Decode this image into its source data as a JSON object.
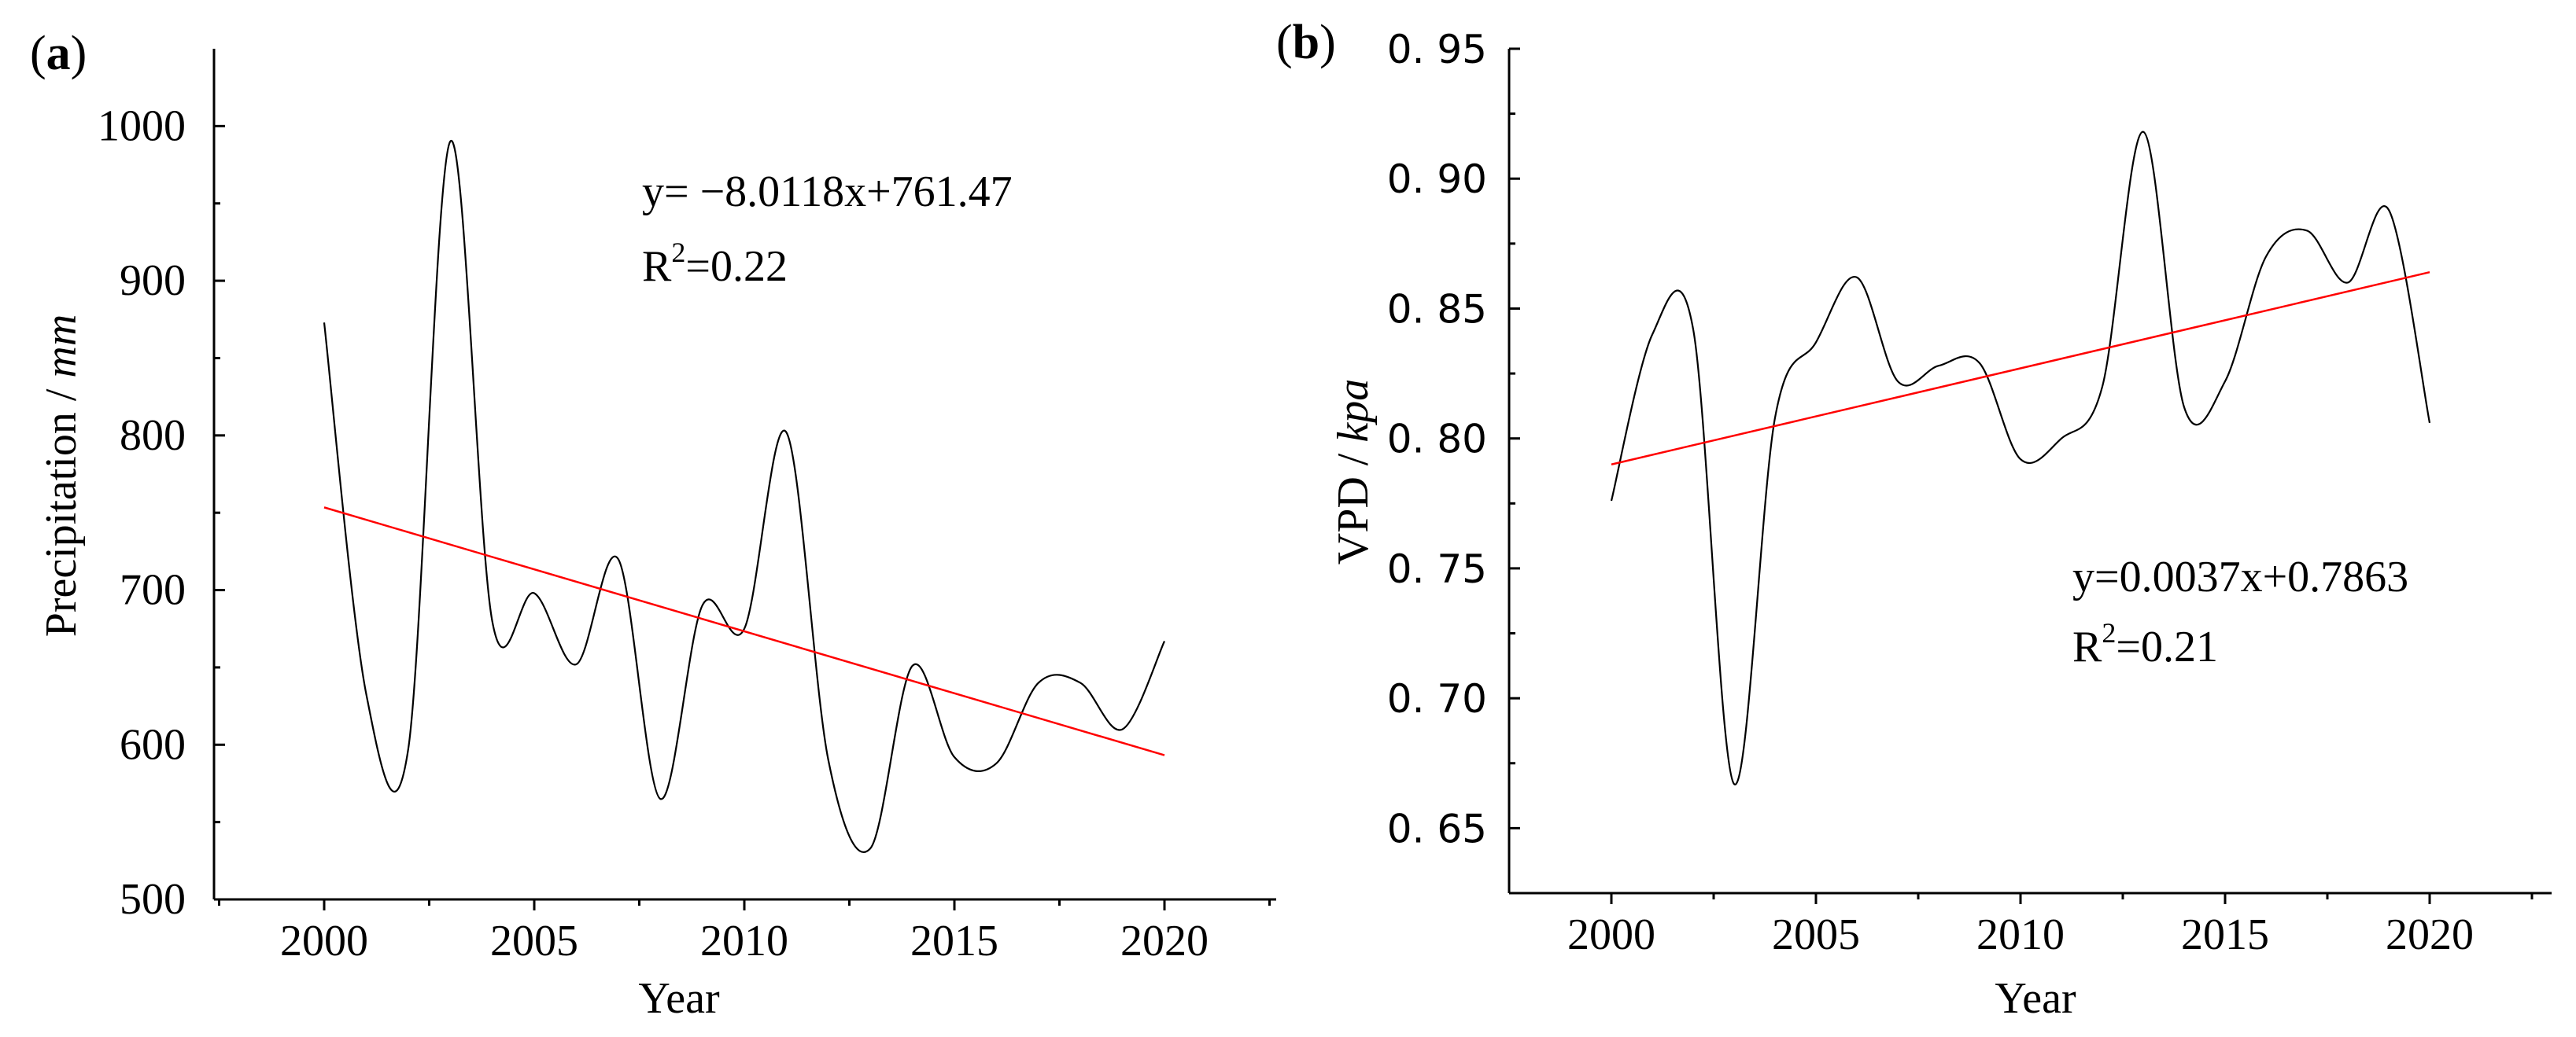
{
  "chart_data": [
    {
      "type": "line",
      "panel_label": "a",
      "title": "",
      "xlabel": "Year",
      "ylabel_main": "Precipitation / ",
      "ylabel_unit": "mm",
      "xlim": [
        1997.5,
        2022.5
      ],
      "ylim": [
        500,
        1050
      ],
      "xticks": [
        2000,
        2005,
        2010,
        2015,
        2020
      ],
      "yticks": [
        500,
        600,
        700,
        800,
        900,
        1000
      ],
      "x": [
        2000,
        2001,
        2002,
        2003,
        2004,
        2005,
        2006,
        2007,
        2008,
        2009,
        2010,
        2011,
        2012,
        2013,
        2014,
        2015,
        2016,
        2017,
        2018,
        2019,
        2020
      ],
      "series": [
        {
          "name": "Precipitation",
          "color": "#000000",
          "values": [
            873,
            633,
            597,
            990,
            680,
            698,
            652,
            720,
            565,
            690,
            675,
            802,
            590,
            533,
            651,
            592,
            588,
            640,
            640,
            610,
            667
          ]
        }
      ],
      "trend": {
        "slope": -8.0118,
        "intercept": 761.47,
        "color": "#ff0000"
      },
      "annotation": {
        "eq": "y= −8.0118x+761.47",
        "r2_prefix": "R",
        "r2_sup": "2",
        "r2_value": "=0.22"
      }
    },
    {
      "type": "line",
      "panel_label": "b",
      "title": "",
      "xlabel": "Year",
      "ylabel_main": "VPD / ",
      "ylabel_unit": "kpa",
      "xlim": [
        1997.5,
        2022.5
      ],
      "ylim": [
        0.625,
        0.95
      ],
      "xticks": [
        2000,
        2005,
        2010,
        2015,
        2020
      ],
      "yticks": [
        0.65,
        0.7,
        0.75,
        0.8,
        0.85,
        0.9,
        0.95
      ],
      "ytick_labels": [
        "0. 65",
        "0. 70",
        "0. 75",
        "0. 80",
        "0. 85",
        "0. 90",
        "0. 95"
      ],
      "x": [
        2000,
        2001,
        2002,
        2003,
        2004,
        2005,
        2006,
        2007,
        2008,
        2009,
        2010,
        2011,
        2012,
        2013,
        2014,
        2015,
        2016,
        2017,
        2018,
        2019,
        2020
      ],
      "series": [
        {
          "name": "VPD",
          "color": "#000000",
          "values": [
            0.776,
            0.84,
            0.842,
            0.667,
            0.808,
            0.837,
            0.862,
            0.822,
            0.828,
            0.829,
            0.792,
            0.8,
            0.82,
            0.918,
            0.812,
            0.822,
            0.87,
            0.88,
            0.86,
            0.888,
            0.806
          ]
        }
      ],
      "trend": {
        "slope": 0.0037,
        "intercept": 0.7863,
        "color": "#ff0000"
      },
      "annotation": {
        "eq": "y=0.0037x+0.7863",
        "r2_prefix": "R",
        "r2_sup": "2",
        "r2_value": "=0.21"
      }
    }
  ]
}
